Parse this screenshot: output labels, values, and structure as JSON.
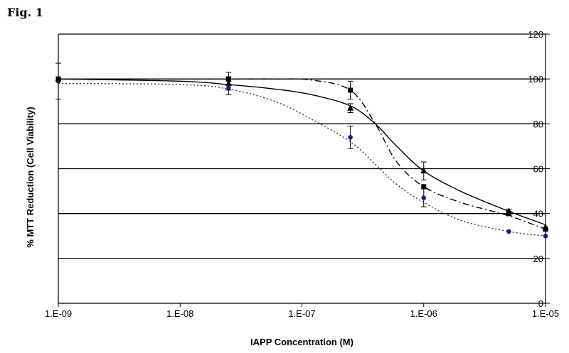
{
  "figure_label": "Fig. 1",
  "chart_data": {
    "type": "scatter",
    "title": "",
    "xlabel": "IAPP Concentration (M)",
    "ylabel": "% MTT Reduction (Cell Viability)",
    "x_scale": "log",
    "xlim": [
      1e-09,
      1e-05
    ],
    "ylim": [
      0,
      120
    ],
    "x_tick_values": [
      1e-09,
      1e-08,
      1e-07,
      1e-06,
      1e-05
    ],
    "x_tick_labels": [
      "1.E-09",
      "1.E-08",
      "1.E-07",
      "1.E-06",
      "1.E-05"
    ],
    "y_tick_values": [
      0,
      20,
      40,
      60,
      80,
      100,
      120
    ],
    "y_tick_labels": [
      "0",
      "20",
      "40",
      "60",
      "80",
      "100",
      "120"
    ],
    "y_axis_side": "right",
    "grid": "horizontal",
    "legend": "none",
    "series": [
      {
        "marker": "circle",
        "line_style": "dotted",
        "color": "#1a1a8c",
        "points": [
          {
            "x": 1e-09,
            "y": 99,
            "err": 8
          },
          {
            "x": 2.5e-08,
            "y": 96,
            "err": 3
          },
          {
            "x": 2.5e-07,
            "y": 74,
            "err": 5
          },
          {
            "x": 1e-06,
            "y": 47,
            "err": 4
          },
          {
            "x": 5e-06,
            "y": 32,
            "err": 0
          },
          {
            "x": 1e-05,
            "y": 30,
            "err": 0
          }
        ],
        "curve": [
          [
            1e-09,
            98
          ],
          [
            1e-08,
            97.5
          ],
          [
            2.5e-08,
            95.5
          ],
          [
            6e-08,
            90
          ],
          [
            1.2e-07,
            82
          ],
          [
            2.5e-07,
            72
          ],
          [
            4e-07,
            62
          ],
          [
            6e-07,
            53
          ],
          [
            1e-06,
            45
          ],
          [
            2e-06,
            37
          ],
          [
            5e-06,
            32
          ],
          [
            1e-05,
            30
          ]
        ]
      },
      {
        "marker": "triangle",
        "line_style": "solid",
        "color": "#000000",
        "points": [
          {
            "x": 1e-09,
            "y": 100,
            "err": 0
          },
          {
            "x": 2.5e-08,
            "y": 98,
            "err": 3
          },
          {
            "x": 2.5e-07,
            "y": 87,
            "err": 2
          },
          {
            "x": 1e-06,
            "y": 59,
            "err": 4
          },
          {
            "x": 5e-06,
            "y": 41,
            "err": 1
          },
          {
            "x": 1e-05,
            "y": 34,
            "err": 0
          }
        ],
        "curve": [
          [
            1e-09,
            100
          ],
          [
            1e-08,
            99
          ],
          [
            2.5e-08,
            97.5
          ],
          [
            6e-08,
            95.5
          ],
          [
            1.2e-07,
            93
          ],
          [
            2.5e-07,
            88
          ],
          [
            4e-07,
            80
          ],
          [
            6e-07,
            70
          ],
          [
            1e-06,
            59
          ],
          [
            2e-06,
            50
          ],
          [
            5e-06,
            41
          ],
          [
            1e-05,
            35
          ]
        ]
      },
      {
        "marker": "square",
        "line_style": "dashdot",
        "color": "#000000",
        "points": [
          {
            "x": 1e-09,
            "y": 100,
            "err": 0
          },
          {
            "x": 2.5e-08,
            "y": 100,
            "err": 3
          },
          {
            "x": 2.5e-07,
            "y": 95,
            "err": 4
          },
          {
            "x": 1e-06,
            "y": 52,
            "err": 0
          },
          {
            "x": 5e-06,
            "y": 40,
            "err": 1
          },
          {
            "x": 1e-05,
            "y": 33,
            "err": 0
          }
        ],
        "curve": [
          [
            1e-09,
            100
          ],
          [
            1e-08,
            100
          ],
          [
            2.5e-08,
            100
          ],
          [
            6e-08,
            100
          ],
          [
            1.2e-07,
            99.5
          ],
          [
            2.5e-07,
            95
          ],
          [
            4e-07,
            80
          ],
          [
            6e-07,
            63
          ],
          [
            1e-06,
            52
          ],
          [
            2e-06,
            45
          ],
          [
            5e-06,
            39
          ],
          [
            1e-05,
            33
          ]
        ]
      }
    ]
  }
}
